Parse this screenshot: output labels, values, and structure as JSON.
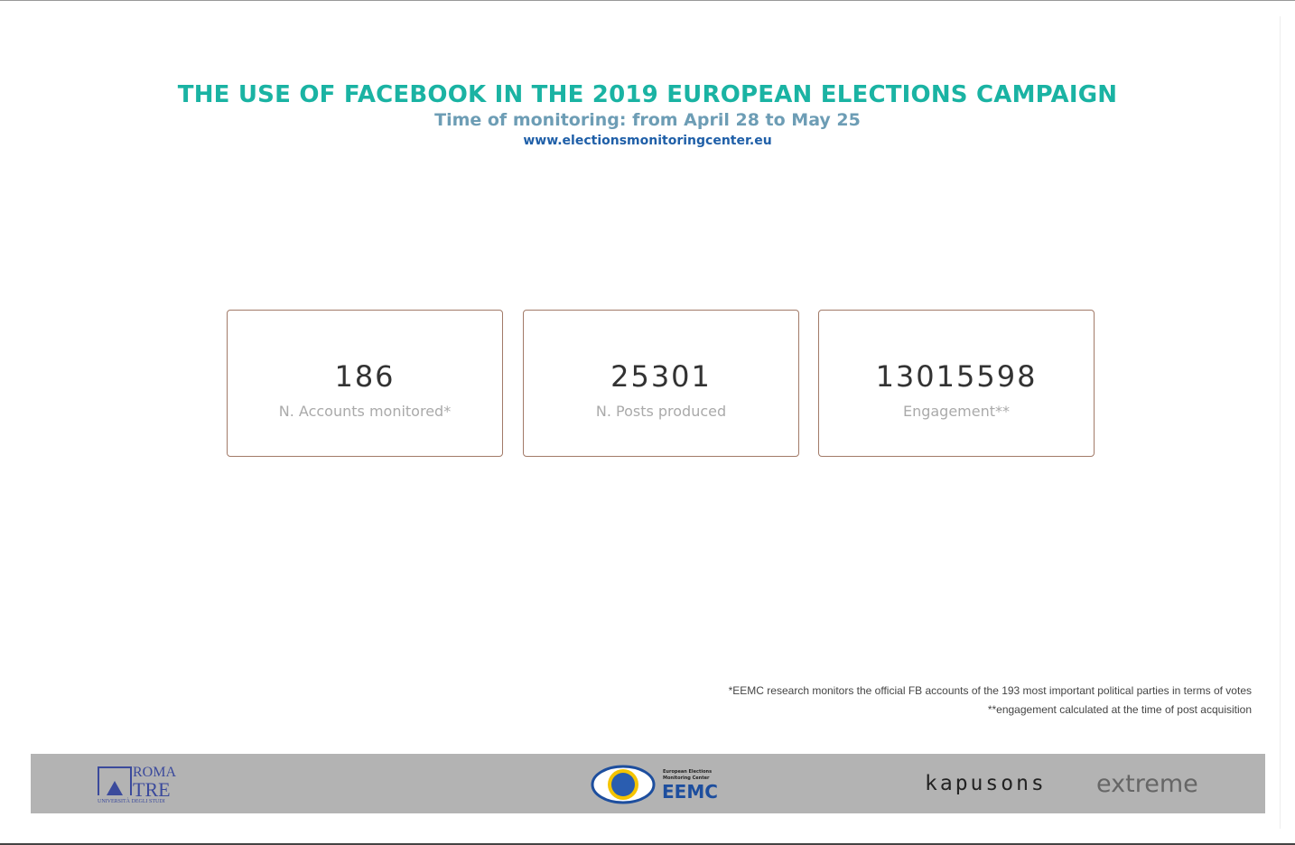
{
  "header": {
    "title": "THE USE OF FACEBOOK IN THE 2019 EUROPEAN ELECTIONS CAMPAIGN",
    "subtitle": "Time of monitoring: from April 28 to May 25",
    "url": "www.electionsmonitoringcenter.eu"
  },
  "cards": [
    {
      "value": 186,
      "label": "N. Accounts monitored*"
    },
    {
      "value": 25301,
      "label": "N. Posts produced"
    },
    {
      "value": 13015598,
      "label": "Engagement**"
    }
  ],
  "notes": [
    "*EEMC research monitors the official FB accounts of the 193 most important political parties in terms of votes",
    "**engagement calculated at the time of post acquisition"
  ],
  "footer": {
    "roma": "ROMA",
    "tre": "TRE",
    "university": "UNIVERSITÀ DEGLI STUDI",
    "eemc_name": "European Elections Monitoring Center",
    "eemc": "EEMC",
    "kapusons": "kapusons",
    "extreme": "extreme"
  }
}
